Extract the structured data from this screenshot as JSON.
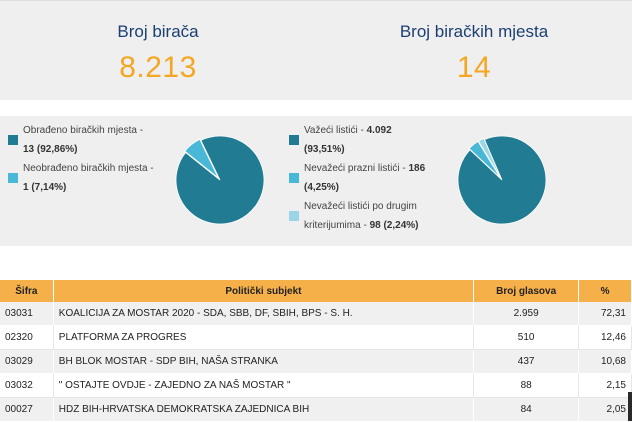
{
  "stats": {
    "voters_label": "Broj birača",
    "voters_value": "8.213",
    "stations_label": "Broj biračkih mjesta",
    "stations_value": "14"
  },
  "colors": {
    "accent": "#f5a623",
    "title": "#1c3f73",
    "pie_main": "#217c93",
    "pie_second": "#48b8d6",
    "pie_third": "#9ad6e8",
    "table_header": "#f5b04a"
  },
  "stations_chart": {
    "legend": [
      {
        "text": "Obrađeno biračkih mjesta -",
        "value": "13 (92,86%)",
        "color": "#217c93"
      },
      {
        "text": "Neobrađeno biračkih mjesta -",
        "value": "1 (7,14%)",
        "color": "#48b8d6"
      }
    ],
    "chart_data": {
      "type": "pie",
      "values": [
        92.86,
        7.14
      ],
      "colors": [
        "#217c93",
        "#48b8d6"
      ]
    }
  },
  "ballots_chart": {
    "legend": [
      {
        "text": "Važeći listići -",
        "value": "4.092",
        "value2": "(93,51%)",
        "color": "#217c93"
      },
      {
        "text": "Nevažeći prazni listići -",
        "value": "186",
        "value2": "(4,25%)",
        "color": "#48b8d6"
      },
      {
        "text": "Nevažeći listići po drugim",
        "text2": "kriterijumima -",
        "value": "98 (2,24%)",
        "color": "#9ad6e8"
      }
    ],
    "chart_data": {
      "type": "pie",
      "values": [
        93.51,
        4.25,
        2.24
      ],
      "colors": [
        "#217c93",
        "#48b8d6",
        "#9ad6e8"
      ]
    }
  },
  "table": {
    "headers": {
      "code": "Šifra",
      "subject": "Politički subjekt",
      "votes": "Broj glasova",
      "pct": "%"
    },
    "rows": [
      {
        "code": "03031",
        "subject": "KOALICIJA ZA MOSTAR 2020 - SDA, SBB, DF, SBIH, BPS - S. H.",
        "votes": "2.959",
        "pct": "72,31"
      },
      {
        "code": "02320",
        "subject": "PLATFORMA ZA PROGRES",
        "votes": "510",
        "pct": "12,46"
      },
      {
        "code": "03029",
        "subject": "BH BLOK MOSTAR - SDP BIH, NAŠA STRANKA",
        "votes": "437",
        "pct": "10,68"
      },
      {
        "code": "03032",
        "subject": "\" OSTAJTE OVDJE - ZAJEDNO ZA NAŠ MOSTAR \"",
        "votes": "88",
        "pct": "2,15"
      },
      {
        "code": "00027",
        "subject": "HDZ BIH-HRVATSKA DEMOKRATSKA ZAJEDNICA BIH",
        "votes": "84",
        "pct": "2,05"
      }
    ]
  }
}
